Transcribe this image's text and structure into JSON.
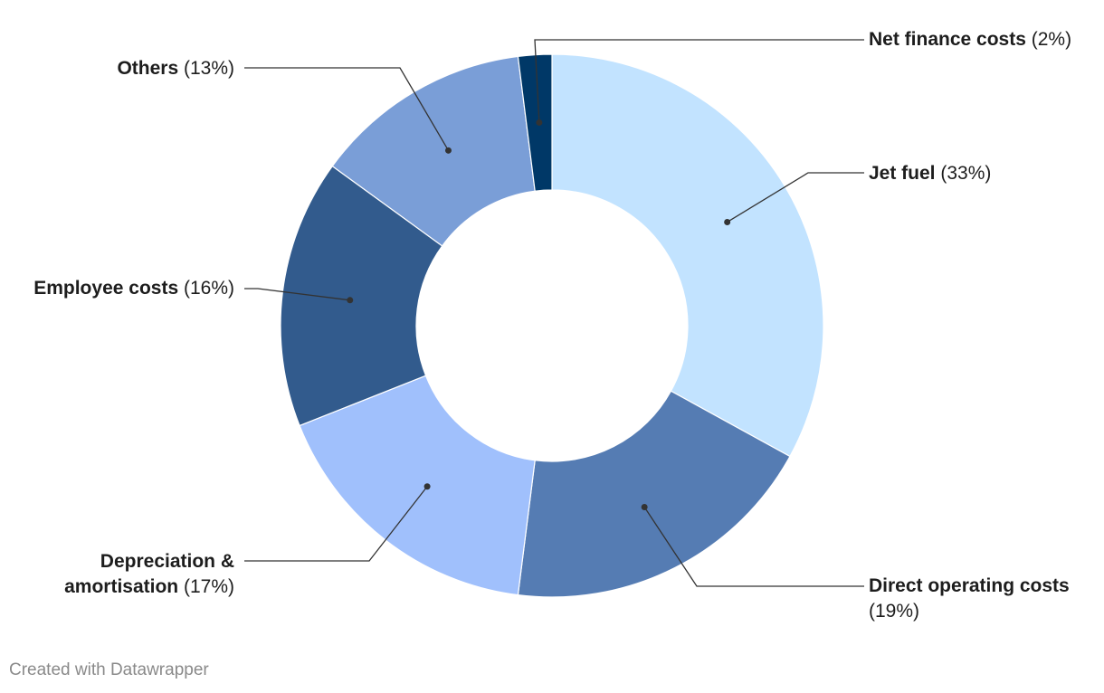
{
  "chart_data": {
    "type": "pie",
    "variant": "donut",
    "title": "",
    "slices": [
      {
        "label": "Jet fuel",
        "pct_label": "(33%)",
        "value": 33,
        "color": "#c2e3ff"
      },
      {
        "label": "Direct operating costs",
        "pct_label": "(19%)",
        "value": 19,
        "color": "#557cb3"
      },
      {
        "label": "Depreciation & amortisation",
        "label_line1": "Depreciation &",
        "label_line2": "amortisation",
        "pct_label": "(17%)",
        "value": 17,
        "color": "#a0c0fc"
      },
      {
        "label": "Employee costs",
        "pct_label": "(16%)",
        "value": 16,
        "color": "#325b8d"
      },
      {
        "label": "Others",
        "pct_label": "(13%)",
        "value": 13,
        "color": "#7a9ed7"
      },
      {
        "label": "Net finance costs",
        "pct_label": "(2%)",
        "value": 2,
        "color": "#003867"
      }
    ],
    "legend": "none"
  },
  "footer": {
    "credit": "Created with Datawrapper"
  }
}
